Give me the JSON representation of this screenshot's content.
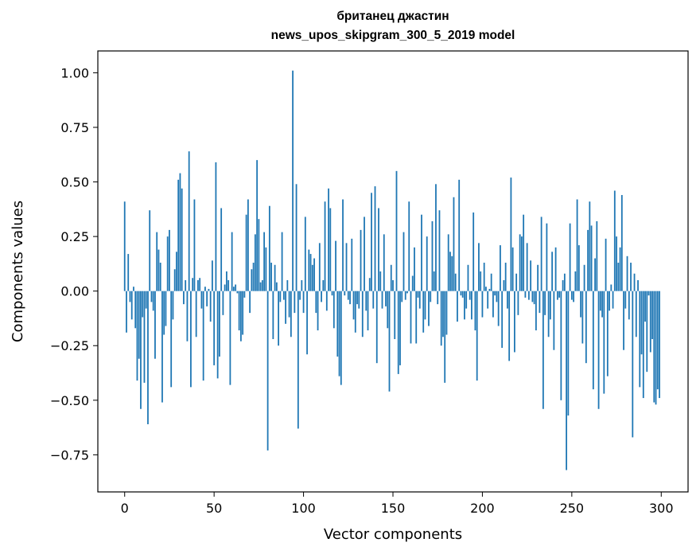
{
  "chart_data": {
    "type": "bar",
    "title": "британец джастин",
    "subtitle": "news_upos_skipgram_300_5_2019 model",
    "xlabel": "Vector components",
    "ylabel": "Components values",
    "xlim": [
      -15,
      315
    ],
    "ylim": [
      -0.92,
      1.1
    ],
    "xticks": [
      0,
      50,
      100,
      150,
      200,
      250,
      300
    ],
    "yticks": [
      -0.75,
      -0.5,
      -0.25,
      0.0,
      0.25,
      0.5,
      0.75,
      1.0
    ],
    "ytick_labels": [
      "−0.75",
      "−0.50",
      "−0.25",
      "0.00",
      "0.25",
      "0.50",
      "0.75",
      "1.00"
    ],
    "bar_color": "#1f77b4",
    "grid": false,
    "values": [
      0.41,
      -0.19,
      0.17,
      -0.05,
      -0.13,
      0.02,
      -0.17,
      -0.41,
      -0.31,
      -0.54,
      -0.12,
      -0.42,
      -0.08,
      -0.61,
      0.37,
      -0.05,
      -0.09,
      -0.31,
      0.27,
      0.19,
      0.13,
      -0.51,
      -0.2,
      -0.16,
      0.25,
      0.28,
      -0.44,
      -0.13,
      0.1,
      0.18,
      0.51,
      0.54,
      0.47,
      -0.06,
      0.05,
      -0.23,
      0.64,
      -0.44,
      0.06,
      0.42,
      -0.21,
      0.05,
      0.06,
      -0.08,
      -0.41,
      0.02,
      -0.07,
      0.01,
      -0.14,
      0.14,
      -0.34,
      0.59,
      -0.4,
      -0.3,
      0.38,
      -0.11,
      0.03,
      0.09,
      0.05,
      -0.43,
      0.27,
      0.02,
      0.03,
      -0.01,
      -0.18,
      -0.23,
      -0.2,
      -0.03,
      0.35,
      0.42,
      -0.1,
      0.1,
      0.13,
      0.26,
      0.6,
      0.33,
      0.04,
      0.05,
      0.27,
      0.2,
      -0.73,
      0.39,
      0.13,
      -0.22,
      0.12,
      0.04,
      -0.25,
      -0.05,
      0.27,
      -0.04,
      -0.15,
      0.05,
      -0.12,
      -0.21,
      1.01,
      -0.1,
      0.49,
      -0.63,
      -0.04,
      0.05,
      -0.1,
      0.34,
      -0.29,
      0.19,
      0.17,
      0.12,
      0.15,
      -0.1,
      -0.18,
      0.22,
      -0.05,
      0.05,
      0.41,
      -0.09,
      0.47,
      0.38,
      -0.02,
      -0.17,
      0.23,
      -0.3,
      -0.39,
      -0.43,
      0.42,
      -0.02,
      0.22,
      -0.04,
      -0.06,
      0.24,
      -0.13,
      -0.19,
      -0.06,
      -0.08,
      0.28,
      -0.21,
      0.34,
      -0.09,
      -0.18,
      0.06,
      0.45,
      -0.08,
      0.48,
      -0.33,
      0.38,
      0.09,
      -0.08,
      0.26,
      -0.07,
      -0.17,
      -0.46,
      0.12,
      0.05,
      -0.22,
      0.55,
      -0.38,
      -0.34,
      -0.05,
      0.27,
      -0.04,
      -0.01,
      0.41,
      -0.24,
      0.07,
      0.2,
      -0.24,
      -0.03,
      -0.08,
      0.35,
      -0.19,
      -0.13,
      0.25,
      -0.16,
      -0.05,
      0.32,
      0.09,
      0.49,
      -0.06,
      0.37,
      -0.25,
      -0.21,
      -0.42,
      -0.2,
      0.26,
      0.18,
      0.16,
      0.43,
      0.08,
      -0.14,
      0.51,
      -0.02,
      -0.03,
      -0.13,
      -0.08,
      0.12,
      -0.04,
      -0.13,
      0.36,
      -0.18,
      -0.41,
      0.22,
      0.09,
      -0.12,
      0.13,
      0.02,
      -0.08,
      0.01,
      0.08,
      -0.12,
      -0.02,
      -0.05,
      -0.16,
      0.21,
      -0.26,
      0.05,
      0.13,
      -0.08,
      -0.32,
      0.52,
      0.2,
      -0.28,
      0.08,
      -0.11,
      0.26,
      0.25,
      0.35,
      -0.03,
      0.22,
      -0.04,
      0.14,
      -0.05,
      -0.06,
      -0.18,
      0.12,
      -0.1,
      0.34,
      -0.54,
      -0.11,
      0.31,
      -0.21,
      -0.13,
      0.18,
      -0.27,
      0.2,
      -0.04,
      -0.03,
      -0.5,
      0.05,
      0.08,
      -0.82,
      -0.57,
      0.31,
      -0.04,
      -0.05,
      0.09,
      0.42,
      0.21,
      -0.12,
      -0.24,
      0.12,
      -0.33,
      0.28,
      0.41,
      0.3,
      -0.45,
      0.15,
      0.32,
      -0.54,
      -0.09,
      -0.12,
      -0.47,
      0.24,
      -0.39,
      -0.09,
      0.03,
      -0.08,
      0.46,
      0.25,
      0.13,
      0.2,
      0.44,
      -0.27,
      -0.08,
      0.16,
      -0.13,
      0.13,
      -0.67,
      0.08,
      -0.21,
      0.05,
      -0.44,
      -0.29,
      -0.49,
      -0.14,
      -0.37,
      -0.02,
      -0.28,
      -0.22,
      -0.51,
      -0.52,
      -0.45,
      -0.49
    ],
    "values_note_x": "bar i is at x = i for i in 0..299"
  }
}
